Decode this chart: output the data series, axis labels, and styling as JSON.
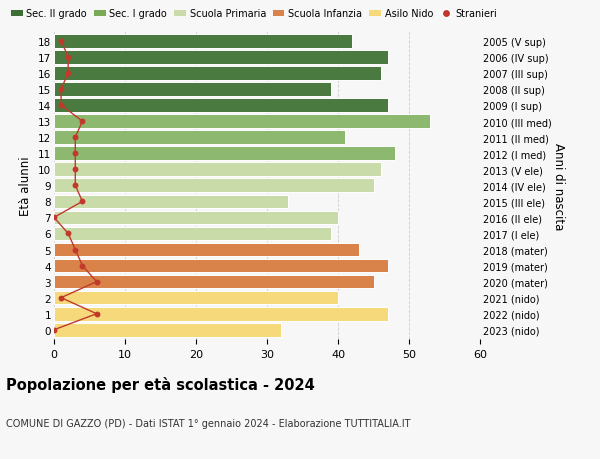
{
  "ages": [
    0,
    1,
    2,
    3,
    4,
    5,
    6,
    7,
    8,
    9,
    10,
    11,
    12,
    13,
    14,
    15,
    16,
    17,
    18
  ],
  "bar_values": [
    32,
    47,
    40,
    45,
    47,
    43,
    39,
    40,
    33,
    45,
    46,
    48,
    41,
    53,
    47,
    39,
    46,
    47,
    42
  ],
  "stranieri": [
    0,
    6,
    1,
    6,
    4,
    3,
    2,
    0,
    4,
    3,
    3,
    3,
    3,
    4,
    1,
    1,
    2,
    2,
    1
  ],
  "right_labels": [
    "2023 (nido)",
    "2022 (nido)",
    "2021 (nido)",
    "2020 (mater)",
    "2019 (mater)",
    "2018 (mater)",
    "2017 (I ele)",
    "2016 (II ele)",
    "2015 (III ele)",
    "2014 (IV ele)",
    "2013 (V ele)",
    "2012 (I med)",
    "2011 (II med)",
    "2010 (III med)",
    "2009 (I sup)",
    "2008 (II sup)",
    "2007 (III sup)",
    "2006 (IV sup)",
    "2005 (V sup)"
  ],
  "bar_colors": [
    "#f5d97a",
    "#f5d97a",
    "#f5d97a",
    "#d9834a",
    "#d9834a",
    "#d9834a",
    "#c8dba8",
    "#c8dba8",
    "#c8dba8",
    "#c8dba8",
    "#c8dba8",
    "#8db870",
    "#8db870",
    "#8db870",
    "#4a7a3f",
    "#4a7a3f",
    "#4a7a3f",
    "#4a7a3f",
    "#4a7a3f"
  ],
  "legend_labels": [
    "Sec. II grado",
    "Sec. I grado",
    "Scuola Primaria",
    "Scuola Infanzia",
    "Asilo Nido",
    "Stranieri"
  ],
  "legend_colors": [
    "#3d6e35",
    "#7aaa56",
    "#c8dba8",
    "#d9834a",
    "#f5d97a",
    "#c0392b"
  ],
  "ylabel": "Età alunni",
  "right_ylabel": "Anni di nascita",
  "title": "Popolazione per età scolastica - 2024",
  "subtitle": "COMUNE DI GAZZO (PD) - Dati ISTAT 1° gennaio 2024 - Elaborazione TUTTITALIA.IT",
  "xlim": [
    0,
    60
  ],
  "xticks": [
    0,
    10,
    20,
    30,
    40,
    50,
    60
  ],
  "stranieri_color": "#c0392b",
  "line_color": "#c0392b",
  "bg_color": "#f7f7f7"
}
